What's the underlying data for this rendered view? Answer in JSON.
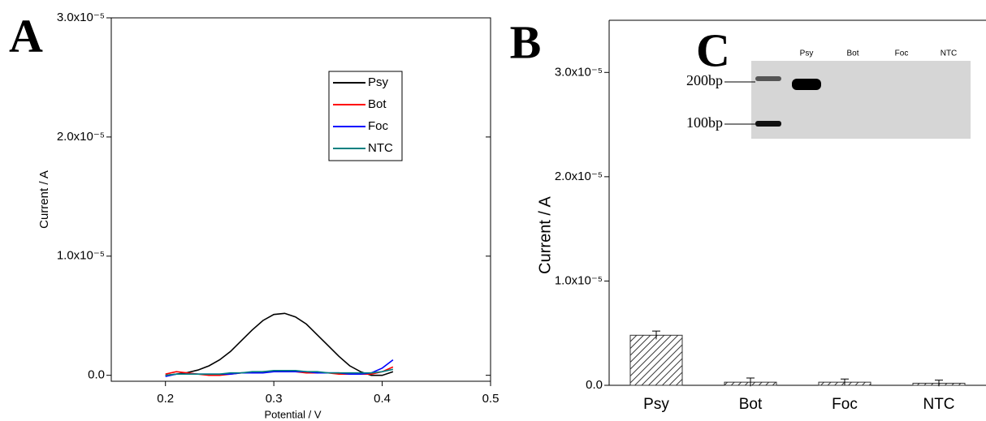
{
  "chart_data": [
    {
      "type": "line",
      "panel_label": "A",
      "xlabel": "Potential / V",
      "ylabel": "Current / A",
      "x": [
        0.2,
        0.21,
        0.22,
        0.23,
        0.24,
        0.25,
        0.26,
        0.27,
        0.28,
        0.29,
        0.3,
        0.31,
        0.32,
        0.33,
        0.34,
        0.35,
        0.36,
        0.37,
        0.38,
        0.39,
        0.4,
        0.41
      ],
      "series": [
        {
          "name": "Psy",
          "color": "#000000",
          "values": [
            0,
            1e-07,
            2.2e-07,
            4.4e-07,
            7.9e-07,
            1.3e-06,
            2e-06,
            2.9e-06,
            3.8e-06,
            4.6e-06,
            5.1e-06,
            5.2e-06,
            4.9e-06,
            4.3e-06,
            3.4e-06,
            2.5e-06,
            1.6e-06,
            8e-07,
            3e-07,
            0,
            0,
            3e-07
          ]
        },
        {
          "name": "Bot",
          "color": "#ff0000",
          "values": [
            1e-07,
            3e-07,
            2e-07,
            1e-07,
            0,
            0,
            1e-07,
            2e-07,
            2e-07,
            3e-07,
            3e-07,
            3e-07,
            3e-07,
            2e-07,
            2e-07,
            2e-07,
            1e-07,
            1e-07,
            1e-07,
            1e-07,
            3e-07,
            7e-07
          ]
        },
        {
          "name": "Foc",
          "color": "#0000ff",
          "values": [
            -1e-07,
            1e-07,
            1e-07,
            1e-07,
            1e-07,
            1e-07,
            1e-07,
            2e-07,
            2e-07,
            2e-07,
            3e-07,
            3e-07,
            3e-07,
            3e-07,
            2e-07,
            2e-07,
            2e-07,
            1e-07,
            1e-07,
            2e-07,
            6e-07,
            1.3e-06
          ]
        },
        {
          "name": "NTC",
          "color": "#008080",
          "values": [
            0,
            1e-07,
            1e-07,
            1e-07,
            1e-07,
            1e-07,
            2e-07,
            2e-07,
            3e-07,
            3e-07,
            4e-07,
            4e-07,
            4e-07,
            3e-07,
            3e-07,
            2e-07,
            2e-07,
            2e-07,
            2e-07,
            2e-07,
            3e-07,
            5e-07
          ]
        }
      ],
      "xlim": [
        0.15,
        0.5
      ],
      "xticks": [
        0.2,
        0.3,
        0.4,
        0.5
      ],
      "ylim": [
        -5e-07,
        3e-05
      ],
      "yticks": [
        {
          "value": 0,
          "label": "0.0"
        },
        {
          "value": 1e-05,
          "label": "1.0x10⁻⁵"
        },
        {
          "value": 2e-05,
          "label": "2.0x10⁻⁵"
        },
        {
          "value": 3e-05,
          "label": "3.0x10⁻⁵"
        }
      ],
      "legend": "upper right"
    },
    {
      "type": "bar",
      "panel_label": "B",
      "ylabel": "Current / A",
      "categories": [
        "Psy",
        "Bot",
        "Foc",
        "NTC"
      ],
      "values": [
        4.8e-06,
        3e-07,
        3e-07,
        2e-07
      ],
      "errors": [
        4e-07,
        4e-07,
        3e-07,
        3e-07
      ],
      "color": "#333333",
      "hatch": true,
      "ylim": [
        0,
        3.5e-05
      ],
      "yticks": [
        {
          "value": 0,
          "label": "0.0"
        },
        {
          "value": 1e-05,
          "label": "1.0x10⁻⁵"
        },
        {
          "value": 2e-05,
          "label": "2.0x10⁻⁵"
        },
        {
          "value": 3e-05,
          "label": "3.0x10⁻⁵"
        }
      ]
    }
  ],
  "gel": {
    "label": "C",
    "lanes": [
      "Psy",
      "Bot",
      "Foc",
      "NTC"
    ],
    "markers": [
      "200bp",
      "100bp"
    ]
  }
}
